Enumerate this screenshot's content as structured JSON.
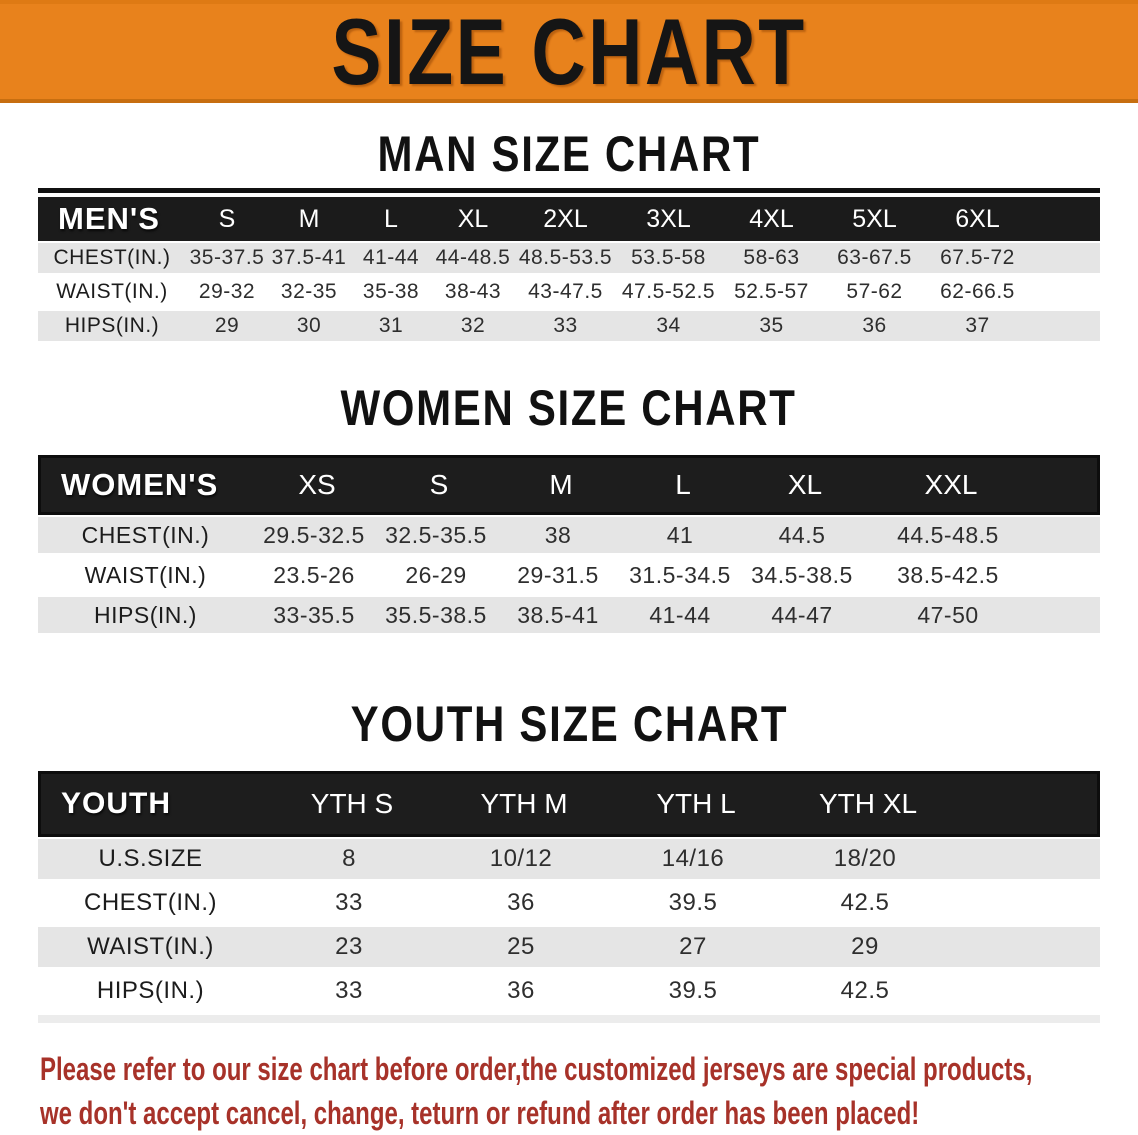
{
  "banner": {
    "title": "SIZE CHART",
    "bg_color": "#E8821C",
    "title_color": "#151515"
  },
  "sections": [
    {
      "id": "men",
      "heading": "MAN SIZE CHART",
      "table": {
        "group_label": "MEN'S",
        "columns": [
          "S",
          "M",
          "L",
          "XL",
          "2XL",
          "3XL",
          "4XL",
          "5XL",
          "6XL"
        ],
        "rows": [
          {
            "label": "CHEST(IN.)",
            "values": [
              "35-37.5",
              "37.5-41",
              "41-44",
              "44-48.5",
              "48.5-53.5",
              "53.5-58",
              "58-63",
              "63-67.5",
              "67.5-72"
            ]
          },
          {
            "label": "WAIST(IN.)",
            "values": [
              "29-32",
              "32-35",
              "35-38",
              "38-43",
              "43-47.5",
              "47.5-52.5",
              "52.5-57",
              "57-62",
              "62-66.5"
            ]
          },
          {
            "label": "HIPS(IN.)",
            "values": [
              "29",
              "30",
              "31",
              "32",
              "33",
              "34",
              "35",
              "36",
              "37"
            ]
          }
        ]
      }
    },
    {
      "id": "women",
      "heading": "WOMEN SIZE CHART",
      "table": {
        "group_label": "WOMEN'S",
        "columns": [
          "XS",
          "S",
          "M",
          "L",
          "XL",
          "XXL"
        ],
        "rows": [
          {
            "label": "CHEST(IN.)",
            "values": [
              "29.5-32.5",
              "32.5-35.5",
              "38",
              "41",
              "44.5",
              "44.5-48.5"
            ]
          },
          {
            "label": "WAIST(IN.)",
            "values": [
              "23.5-26",
              "26-29",
              "29-31.5",
              "31.5-34.5",
              "34.5-38.5",
              "38.5-42.5"
            ]
          },
          {
            "label": "HIPS(IN.)",
            "values": [
              "33-35.5",
              "35.5-38.5",
              "38.5-41",
              "41-44",
              "44-47",
              "47-50"
            ]
          }
        ]
      }
    },
    {
      "id": "youth",
      "heading": "YOUTH SIZE CHART",
      "table": {
        "group_label": "YOUTH",
        "columns": [
          "YTH S",
          "YTH M",
          "YTH L",
          "YTH XL"
        ],
        "rows": [
          {
            "label": "U.S.SIZE",
            "values": [
              "8",
              "10/12",
              "14/16",
              "18/20"
            ]
          },
          {
            "label": "CHEST(IN.)",
            "values": [
              "33",
              "36",
              "39.5",
              "42.5"
            ]
          },
          {
            "label": "WAIST(IN.)",
            "values": [
              "23",
              "25",
              "27",
              "29"
            ]
          },
          {
            "label": "HIPS(IN.)",
            "values": [
              "33",
              "36",
              "39.5",
              "42.5"
            ]
          }
        ]
      }
    }
  ],
  "footer": {
    "line1": "Please refer to our size chart before order,the customized jerseys are special products,",
    "line2": "we don't accept cancel, change, teturn or refund after order has been placed!",
    "text_color": "#A73229"
  },
  "colors": {
    "row_shaded": "#E5E5E5",
    "header_bar": "#1B1B1B",
    "banner_orange": "#E8821C"
  }
}
